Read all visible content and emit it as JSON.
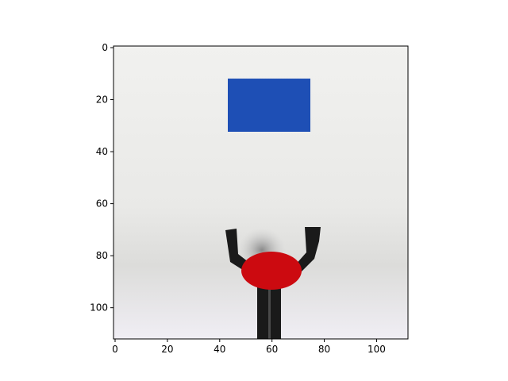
{
  "figure": {
    "x_tick_labels": [
      "0",
      "20",
      "40",
      "60",
      "80",
      "100"
    ],
    "y_tick_labels": [
      "0",
      "20",
      "40",
      "60",
      "80",
      "100"
    ],
    "x_tick_values": [
      0,
      20,
      40,
      60,
      80,
      100
    ],
    "y_tick_values": [
      0,
      20,
      40,
      60,
      80,
      100
    ],
    "x_range": [
      0,
      112
    ],
    "y_range": [
      0,
      112
    ]
  },
  "scene": {
    "objects": [
      "blue-rectangle",
      "red-ellipse",
      "robot-gripper"
    ],
    "colors": {
      "background_top": "#f0f0ee",
      "background_bottom": "#efeff3",
      "blue_block": "#1e4fb5",
      "red_object": "#cc0a10",
      "gripper": "#1a1a1a"
    }
  }
}
